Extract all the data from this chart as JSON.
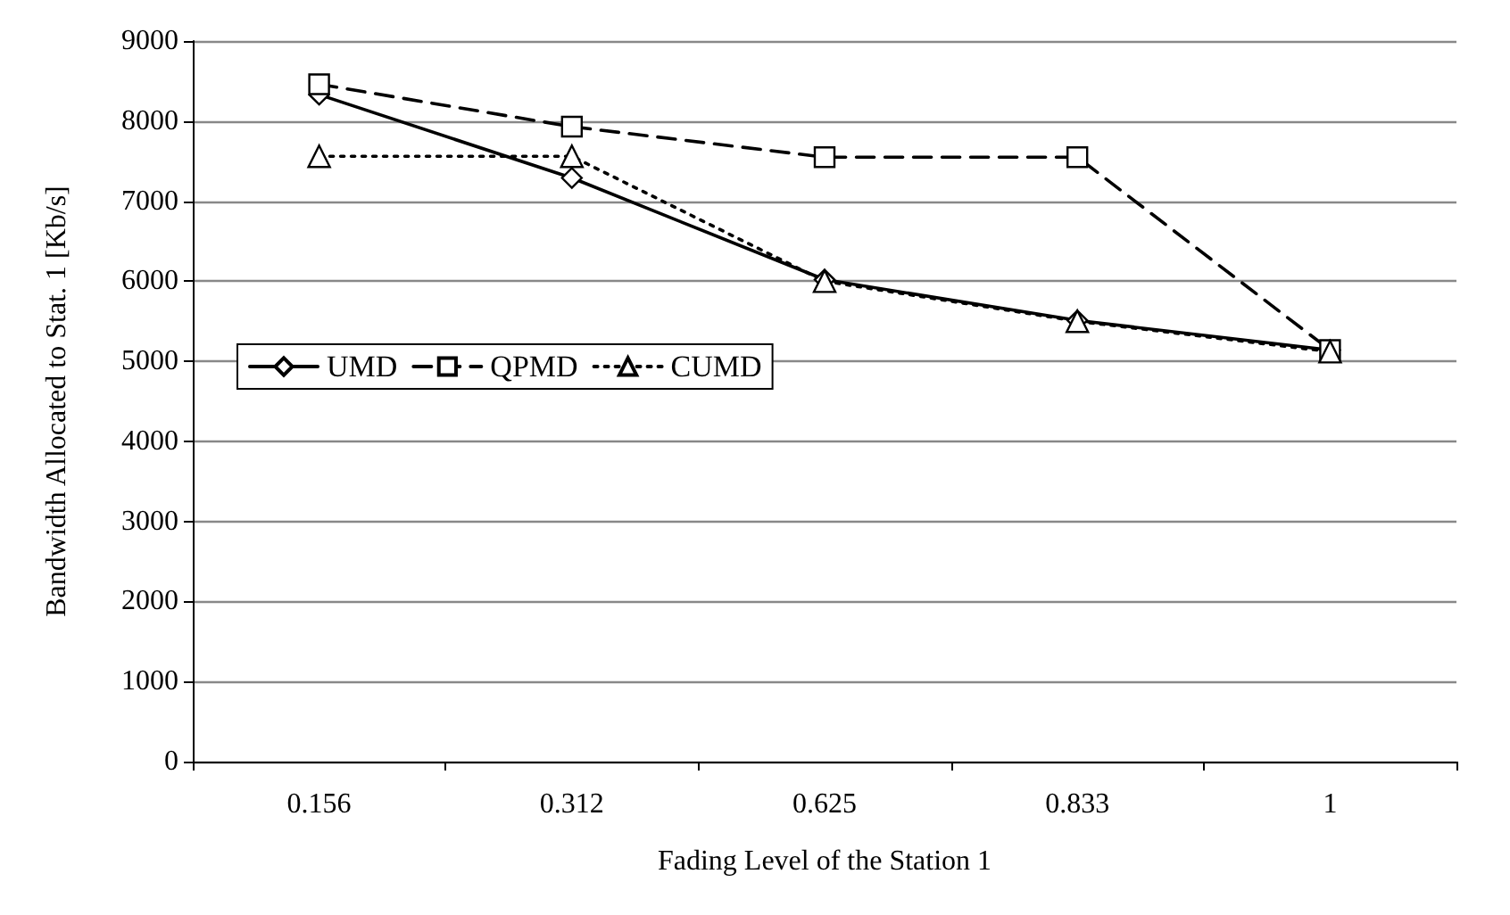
{
  "chart_data": {
    "type": "line",
    "xlabel": "Fading Level of the Station 1",
    "ylabel": "Bandwidth Allocated to Stat. 1 [Kb/s]",
    "categories": [
      "0.156",
      "0.312",
      "0.625",
      "0.833",
      "1"
    ],
    "series": [
      {
        "name": "UMD",
        "color": "#000000",
        "values": [
          8330,
          7290,
          6020,
          5510,
          5140
        ],
        "marker": "diamond",
        "line_style": "solid"
      },
      {
        "name": "QPMD",
        "color": "#000000",
        "values": [
          8460,
          7930,
          7550,
          7550,
          5140
        ],
        "marker": "square",
        "line_style": "dashed"
      },
      {
        "name": "CUMD",
        "color": "#000000",
        "values": [
          7560,
          7560,
          6000,
          5500,
          5120
        ],
        "marker": "triangle",
        "line_style": "dotted"
      }
    ],
    "ylim": [
      0,
      9000
    ],
    "yticks": [
      0,
      1000,
      2000,
      3000,
      4000,
      5000,
      6000,
      7000,
      8000,
      9000
    ],
    "grid": "y",
    "legend": "left"
  }
}
